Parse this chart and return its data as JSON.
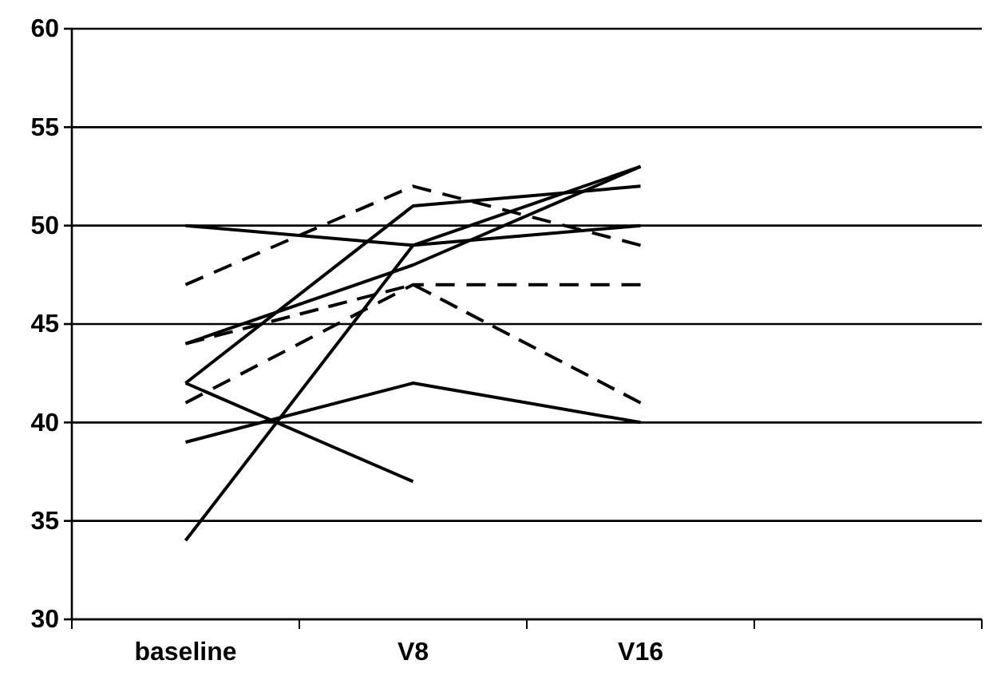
{
  "chart_data": {
    "type": "line",
    "categories": [
      "baseline",
      "V8",
      "V16",
      null
    ],
    "ylim": [
      30,
      60
    ],
    "yticks": [
      30,
      35,
      40,
      45,
      50,
      55,
      60
    ],
    "grid": "y",
    "series": [
      {
        "color": "#000000",
        "line_style": "solid",
        "values": [
          50,
          49,
          50,
          null
        ]
      },
      {
        "color": "#000000",
        "line_style": "solid",
        "values": [
          42,
          51,
          52,
          null
        ]
      },
      {
        "color": "#000000",
        "line_style": "solid",
        "values": [
          34,
          49,
          53,
          null
        ]
      },
      {
        "color": "#000000",
        "line_style": "solid",
        "values": [
          44,
          48,
          53,
          null
        ]
      },
      {
        "color": "#000000",
        "line_style": "solid",
        "values": [
          39,
          42,
          40,
          null
        ]
      },
      {
        "color": "#000000",
        "line_style": "solid",
        "values": [
          42,
          37,
          null,
          null
        ]
      },
      {
        "color": "#000000",
        "line_style": "dashed",
        "values": [
          47,
          52,
          49,
          null
        ]
      },
      {
        "color": "#000000",
        "line_style": "dashed",
        "values": [
          44,
          47,
          41,
          null
        ]
      },
      {
        "color": "#000000",
        "line_style": "dashed",
        "values": [
          41,
          47,
          47,
          null
        ]
      }
    ]
  }
}
